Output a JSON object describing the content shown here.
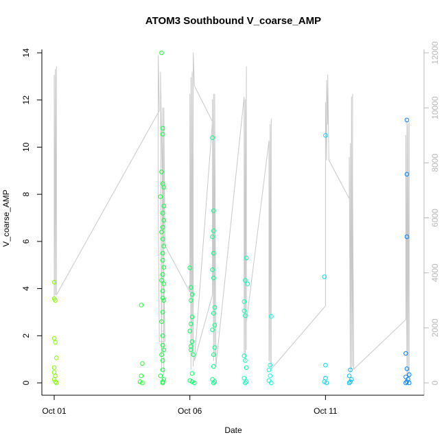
{
  "chart_data": {
    "type": "scatter",
    "title": "ATOM3 Southbound V_coarse_AMP",
    "xlabel": "Date",
    "ylabel": "V_coarse_AMP",
    "y2label": "",
    "x_ticks": [
      {
        "date": "2023-10-01",
        "label": "Oct 01"
      },
      {
        "date": "2023-10-06",
        "label": "Oct 06"
      },
      {
        "date": "2023-10-11",
        "label": "Oct 11"
      }
    ],
    "xlim": [
      "2023-10-01T00:00",
      "2023-10-14T00:00"
    ],
    "ylim": [
      0,
      14
    ],
    "y_ticks": [
      0,
      2,
      4,
      6,
      8,
      10,
      12,
      14
    ],
    "y2lim": [
      0,
      12000
    ],
    "y2_ticks": [
      0,
      2000,
      4000,
      6000,
      8000,
      10000,
      12000
    ],
    "colors": {
      "line": "#c8c8c8",
      "right_axis": "#b8b8b8",
      "point_gradient": [
        "#80ff00",
        "#00ff40",
        "#00ffff",
        "#0080ff"
      ]
    },
    "series": [
      {
        "name": "",
        "kind": "points",
        "points": [
          {
            "x": "2023-10-01T00:00",
            "y": 4.27
          },
          {
            "x": "2023-10-01T00:00",
            "y": 3.57
          },
          {
            "x": "2023-10-01T01:00",
            "y": 3.5
          },
          {
            "x": "2023-10-01T00:00",
            "y": 1.89
          },
          {
            "x": "2023-10-01T01:00",
            "y": 1.72
          },
          {
            "x": "2023-10-01T02:00",
            "y": 1.06
          },
          {
            "x": "2023-10-01T00:00",
            "y": 0.65
          },
          {
            "x": "2023-10-01T00:00",
            "y": 0.45
          },
          {
            "x": "2023-10-01T01:00",
            "y": 0.3
          },
          {
            "x": "2023-10-01T00:00",
            "y": 0.15
          },
          {
            "x": "2023-10-01T01:00",
            "y": 0.05
          },
          {
            "x": "2023-10-01T02:00",
            "y": 0.0
          },
          {
            "x": "2023-10-04T05:00",
            "y": 3.3
          },
          {
            "x": "2023-10-04T06:00",
            "y": 0.82
          },
          {
            "x": "2023-10-04T05:00",
            "y": 0.3
          },
          {
            "x": "2023-10-04T04:00",
            "y": 0.05
          },
          {
            "x": "2023-10-04T06:00",
            "y": 0.0
          },
          {
            "x": "2023-10-04T23:00",
            "y": 14.0
          },
          {
            "x": "2023-10-05T00:00",
            "y": 10.8
          },
          {
            "x": "2023-10-05T00:00",
            "y": 10.55
          },
          {
            "x": "2023-10-04T23:00",
            "y": 8.95
          },
          {
            "x": "2023-10-05T00:00",
            "y": 8.45
          },
          {
            "x": "2023-10-05T01:00",
            "y": 8.3
          },
          {
            "x": "2023-10-04T22:00",
            "y": 7.9
          },
          {
            "x": "2023-10-05T01:00",
            "y": 7.5
          },
          {
            "x": "2023-10-05T00:00",
            "y": 7.2
          },
          {
            "x": "2023-10-05T01:00",
            "y": 6.9
          },
          {
            "x": "2023-10-05T00:00",
            "y": 6.6
          },
          {
            "x": "2023-10-04T23:00",
            "y": 6.4
          },
          {
            "x": "2023-10-05T00:00",
            "y": 6.1
          },
          {
            "x": "2023-10-05T01:00",
            "y": 5.8
          },
          {
            "x": "2023-10-05T00:00",
            "y": 5.5
          },
          {
            "x": "2023-10-05T00:00",
            "y": 5.2
          },
          {
            "x": "2023-10-05T01:00",
            "y": 4.9
          },
          {
            "x": "2023-10-05T00:00",
            "y": 4.6
          },
          {
            "x": "2023-10-04T23:00",
            "y": 4.35
          },
          {
            "x": "2023-10-05T01:00",
            "y": 4.2
          },
          {
            "x": "2023-10-05T00:00",
            "y": 3.9
          },
          {
            "x": "2023-10-05T00:00",
            "y": 3.6
          },
          {
            "x": "2023-10-05T01:00",
            "y": 3.5
          },
          {
            "x": "2023-10-05T00:00",
            "y": 3.0
          },
          {
            "x": "2023-10-04T23:00",
            "y": 2.6
          },
          {
            "x": "2023-10-05T00:00",
            "y": 2.0
          },
          {
            "x": "2023-10-05T00:00",
            "y": 1.6
          },
          {
            "x": "2023-10-05T01:00",
            "y": 1.4
          },
          {
            "x": "2023-10-04T23:00",
            "y": 1.2
          },
          {
            "x": "2023-10-05T00:00",
            "y": 0.95
          },
          {
            "x": "2023-10-05T00:00",
            "y": 0.55
          },
          {
            "x": "2023-10-04T22:00",
            "y": 0.3
          },
          {
            "x": "2023-10-05T01:00",
            "y": 0.15
          },
          {
            "x": "2023-10-05T00:00",
            "y": 0.05
          },
          {
            "x": "2023-10-05T00:00",
            "y": 0.0
          },
          {
            "x": "2023-10-06T00:00",
            "y": 4.88
          },
          {
            "x": "2023-10-06T01:00",
            "y": 4.05
          },
          {
            "x": "2023-10-06T02:00",
            "y": 3.75
          },
          {
            "x": "2023-10-06T01:00",
            "y": 3.5
          },
          {
            "x": "2023-10-06T02:00",
            "y": 2.8
          },
          {
            "x": "2023-10-06T01:00",
            "y": 2.5
          },
          {
            "x": "2023-10-06T00:00",
            "y": 2.2
          },
          {
            "x": "2023-10-06T02:00",
            "y": 1.75
          },
          {
            "x": "2023-10-06T01:00",
            "y": 1.55
          },
          {
            "x": "2023-10-06T01:00",
            "y": 1.4
          },
          {
            "x": "2023-10-06T03:00",
            "y": 1.2
          },
          {
            "x": "2023-10-06T02:00",
            "y": 0.4
          },
          {
            "x": "2023-10-06T00:00",
            "y": 0.1
          },
          {
            "x": "2023-10-06T02:00",
            "y": 0.05
          },
          {
            "x": "2023-10-06T04:00",
            "y": 0.0
          },
          {
            "x": "2023-10-06T20:00",
            "y": 10.4
          },
          {
            "x": "2023-10-06T21:00",
            "y": 7.3
          },
          {
            "x": "2023-10-06T21:00",
            "y": 6.45
          },
          {
            "x": "2023-10-06T20:00",
            "y": 6.2
          },
          {
            "x": "2023-10-06T21:00",
            "y": 5.5
          },
          {
            "x": "2023-10-06T20:00",
            "y": 4.8
          },
          {
            "x": "2023-10-06T21:00",
            "y": 4.45
          },
          {
            "x": "2023-10-06T22:00",
            "y": 3.2
          },
          {
            "x": "2023-10-06T21:00",
            "y": 2.95
          },
          {
            "x": "2023-10-06T22:00",
            "y": 2.45
          },
          {
            "x": "2023-10-06T20:00",
            "y": 2.25
          },
          {
            "x": "2023-10-06T22:00",
            "y": 1.5
          },
          {
            "x": "2023-10-06T21:00",
            "y": 1.2
          },
          {
            "x": "2023-10-06T21:00",
            "y": 0.7
          },
          {
            "x": "2023-10-06T20:00",
            "y": 0.15
          },
          {
            "x": "2023-10-06T22:00",
            "y": 0.05
          },
          {
            "x": "2023-10-06T21:00",
            "y": 0.0
          },
          {
            "x": "2023-10-08T02:00",
            "y": 5.3
          },
          {
            "x": "2023-10-08T01:00",
            "y": 4.35
          },
          {
            "x": "2023-10-08T03:00",
            "y": 4.2
          },
          {
            "x": "2023-10-08T00:00",
            "y": 3.45
          },
          {
            "x": "2023-10-08T00:00",
            "y": 3.05
          },
          {
            "x": "2023-10-08T01:00",
            "y": 2.85
          },
          {
            "x": "2023-10-08T00:00",
            "y": 1.15
          },
          {
            "x": "2023-10-08T01:00",
            "y": 0.95
          },
          {
            "x": "2023-10-08T02:00",
            "y": 0.65
          },
          {
            "x": "2023-10-08T00:00",
            "y": 0.2
          },
          {
            "x": "2023-10-08T02:00",
            "y": 0.05
          },
          {
            "x": "2023-10-08T01:00",
            "y": 0.0
          },
          {
            "x": "2023-10-09T00:00",
            "y": 2.82
          },
          {
            "x": "2023-10-08T23:00",
            "y": 0.75
          },
          {
            "x": "2023-10-08T22:00",
            "y": 0.55
          },
          {
            "x": "2023-10-08T23:00",
            "y": 0.3
          },
          {
            "x": "2023-10-08T22:00",
            "y": 0.1
          },
          {
            "x": "2023-10-09T00:00",
            "y": 0.0
          },
          {
            "x": "2023-10-11T00:00",
            "y": 10.5
          },
          {
            "x": "2023-10-10T23:00",
            "y": 4.5
          },
          {
            "x": "2023-10-11T00:00",
            "y": 0.75
          },
          {
            "x": "2023-10-11T00:00",
            "y": 0.2
          },
          {
            "x": "2023-10-10T23:00",
            "y": 0.05
          },
          {
            "x": "2023-10-11T01:00",
            "y": 0.0
          },
          {
            "x": "2023-10-11T22:00",
            "y": 0.55
          },
          {
            "x": "2023-10-11T21:00",
            "y": 0.3
          },
          {
            "x": "2023-10-11T23:00",
            "y": 0.15
          },
          {
            "x": "2023-10-11T22:00",
            "y": 0.05
          },
          {
            "x": "2023-10-11T21:00",
            "y": 0.0
          },
          {
            "x": "2023-10-14T00:00",
            "y": 11.15
          },
          {
            "x": "2023-10-14T00:00",
            "y": 8.85
          },
          {
            "x": "2023-10-14T00:00",
            "y": 6.2
          },
          {
            "x": "2023-10-13T23:00",
            "y": 1.25
          },
          {
            "x": "2023-10-14T00:00",
            "y": 0.6
          },
          {
            "x": "2023-10-14T02:00",
            "y": 0.35
          },
          {
            "x": "2023-10-13T23:00",
            "y": 0.25
          },
          {
            "x": "2023-10-14T01:00",
            "y": 0.15
          },
          {
            "x": "2023-10-14T00:00",
            "y": 0.05
          },
          {
            "x": "2023-10-14T02:00",
            "y": 0.0
          },
          {
            "x": "2023-10-13T23:00",
            "y": 0.0
          }
        ]
      },
      {
        "name": "",
        "kind": "line",
        "axis": "right",
        "points": [
          {
            "x": "2023-10-01T00:00",
            "y": 11200
          },
          {
            "x": "2023-10-01T00:00",
            "y": 3000
          },
          {
            "x": "2023-10-01T01:00",
            "y": 11400
          },
          {
            "x": "2023-10-01T01:00",
            "y": 3200
          },
          {
            "x": "2023-10-01T02:00",
            "y": 11500
          },
          {
            "x": "2023-10-01T02:00",
            "y": 3200
          },
          {
            "x": "2023-10-04T21:00",
            "y": 9900
          },
          {
            "x": "2023-10-04T20:00",
            "y": 11900
          },
          {
            "x": "2023-10-04T20:00",
            "y": 6300
          },
          {
            "x": "2023-10-04T21:00",
            "y": 1500
          },
          {
            "x": "2023-10-05T02:00",
            "y": 1500
          },
          {
            "x": "2023-10-04T22:00",
            "y": 11300
          },
          {
            "x": "2023-10-04T23:00",
            "y": 500
          },
          {
            "x": "2023-10-05T00:00",
            "y": 10000
          },
          {
            "x": "2023-10-05T01:00",
            "y": 300
          },
          {
            "x": "2023-10-05T01:00",
            "y": 10000
          },
          {
            "x": "2023-10-05T02:00",
            "y": 5000
          },
          {
            "x": "2023-10-06T00:00",
            "y": 3300
          },
          {
            "x": "2023-10-06T00:00",
            "y": 10500
          },
          {
            "x": "2023-10-06T01:00",
            "y": 500
          },
          {
            "x": "2023-10-06T01:00",
            "y": 11100
          },
          {
            "x": "2023-10-06T02:00",
            "y": 1000
          },
          {
            "x": "2023-10-06T02:00",
            "y": 11300
          },
          {
            "x": "2023-10-06T03:00",
            "y": 600
          },
          {
            "x": "2023-10-06T03:00",
            "y": 12000
          },
          {
            "x": "2023-10-06T04:00",
            "y": 10800
          },
          {
            "x": "2023-10-06T20:00",
            "y": 9500
          },
          {
            "x": "2023-10-06T04:00",
            "y": 800
          },
          {
            "x": "2023-10-06T20:00",
            "y": 3200
          },
          {
            "x": "2023-10-06T20:00",
            "y": 10300
          },
          {
            "x": "2023-10-06T21:00",
            "y": 800
          },
          {
            "x": "2023-10-06T21:00",
            "y": 10500
          },
          {
            "x": "2023-10-06T22:00",
            "y": 1000
          },
          {
            "x": "2023-10-06T22:00",
            "y": 10500
          },
          {
            "x": "2023-10-06T23:00",
            "y": 600
          },
          {
            "x": "2023-10-08T00:00",
            "y": 10400
          },
          {
            "x": "2023-10-08T00:00",
            "y": 1000
          },
          {
            "x": "2023-10-08T01:00",
            "y": 10300
          },
          {
            "x": "2023-10-08T01:00",
            "y": 800
          },
          {
            "x": "2023-10-08T02:00",
            "y": 11500
          },
          {
            "x": "2023-10-08T02:00",
            "y": 1200
          },
          {
            "x": "2023-10-08T02:00",
            "y": 2200
          },
          {
            "x": "2023-10-08T22:00",
            "y": 8800
          },
          {
            "x": "2023-10-08T22:00",
            "y": 800
          },
          {
            "x": "2023-10-08T23:00",
            "y": 9400
          },
          {
            "x": "2023-10-08T23:00",
            "y": 600
          },
          {
            "x": "2023-10-09T00:00",
            "y": 9600
          },
          {
            "x": "2023-10-09T00:00",
            "y": 3300
          },
          {
            "x": "2023-10-09T00:00",
            "y": 500
          },
          {
            "x": "2023-10-11T00:00",
            "y": 2800
          },
          {
            "x": "2023-10-11T00:00",
            "y": 10200
          },
          {
            "x": "2023-10-11T01:00",
            "y": 8100
          },
          {
            "x": "2023-10-11T01:00",
            "y": 11000
          },
          {
            "x": "2023-10-11T02:00",
            "y": 9400
          },
          {
            "x": "2023-10-11T02:00",
            "y": 11200
          },
          {
            "x": "2023-10-11T03:00",
            "y": 8100
          },
          {
            "x": "2023-10-11T21:00",
            "y": 6700
          },
          {
            "x": "2023-10-11T21:00",
            "y": 8200
          },
          {
            "x": "2023-10-11T22:00",
            "y": 400
          },
          {
            "x": "2023-10-11T22:00",
            "y": 8700
          },
          {
            "x": "2023-10-11T23:00",
            "y": 500
          },
          {
            "x": "2023-10-11T23:00",
            "y": 10400
          },
          {
            "x": "2023-10-12T00:00",
            "y": 600
          },
          {
            "x": "2023-10-12T00:00",
            "y": 10500
          },
          {
            "x": "2023-10-12T00:00",
            "y": 6900
          },
          {
            "x": "2023-10-12T01:00",
            "y": 500
          },
          {
            "x": "2023-10-13T23:00",
            "y": 2300
          },
          {
            "x": "2023-10-13T23:00",
            "y": 9000
          },
          {
            "x": "2023-10-14T00:00",
            "y": 300
          },
          {
            "x": "2023-10-14T00:00",
            "y": 9600
          },
          {
            "x": "2023-10-14T01:00",
            "y": 200
          },
          {
            "x": "2023-10-14T01:00",
            "y": 9400
          },
          {
            "x": "2023-10-14T02:00",
            "y": 200
          },
          {
            "x": "2023-10-14T02:00",
            "y": 9500
          },
          {
            "x": "2023-10-14T02:00",
            "y": 800
          }
        ]
      }
    ],
    "grid": false,
    "legend": "none"
  }
}
